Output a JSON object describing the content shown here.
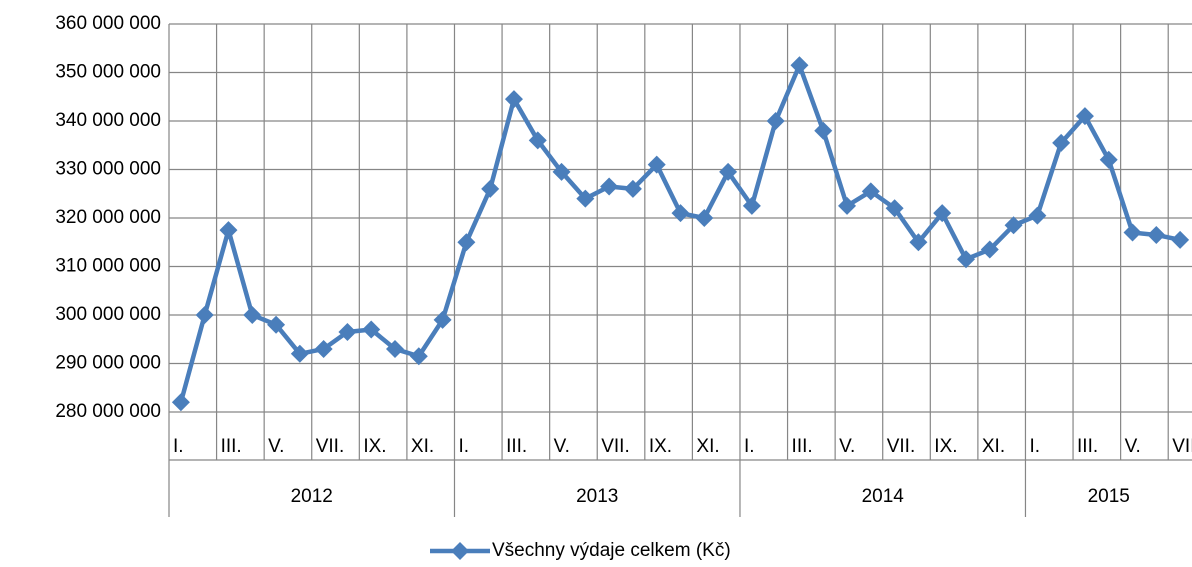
{
  "chart_data": {
    "type": "line",
    "categories": [
      "I.",
      null,
      "III.",
      null,
      "V.",
      null,
      "VII.",
      null,
      "IX.",
      null,
      "XI.",
      null,
      "I.",
      null,
      "III.",
      null,
      "V.",
      null,
      "VII.",
      null,
      "IX.",
      null,
      "XI.",
      null,
      "I.",
      null,
      "III.",
      null,
      "V.",
      null,
      "VII.",
      null,
      "IX.",
      null,
      "XI.",
      null,
      "I.",
      null,
      "III.",
      null,
      "V.",
      null,
      "VII"
    ],
    "groups": [
      {
        "label": "2012",
        "count": 12
      },
      {
        "label": "2013",
        "count": 12
      },
      {
        "label": "2014",
        "count": 12
      },
      {
        "label": "2015",
        "count": 7
      }
    ],
    "series": [
      {
        "name": "Všechny výdaje celkem (Kč)",
        "color": "#4a7ebb",
        "values": [
          282000000,
          300000000,
          317500000,
          300000000,
          298000000,
          292000000,
          293000000,
          296500000,
          297000000,
          293000000,
          291500000,
          299000000,
          315000000,
          326000000,
          344500000,
          336000000,
          329500000,
          324000000,
          326500000,
          326000000,
          331000000,
          321000000,
          320000000,
          329500000,
          322500000,
          340000000,
          351500000,
          338000000,
          322500000,
          325500000,
          322000000,
          315000000,
          321000000,
          311500000,
          313500000,
          318500000,
          320500000,
          335500000,
          341000000,
          332000000,
          317000000,
          316500000,
          315500000
        ]
      }
    ],
    "ylim": [
      280000000,
      360000000
    ],
    "yticks": [
      {
        "value": 280000000,
        "label": "280 000 000"
      },
      {
        "value": 290000000,
        "label": "290 000 000"
      },
      {
        "value": 300000000,
        "label": "300 000 000"
      },
      {
        "value": 310000000,
        "label": "310 000 000"
      },
      {
        "value": 320000000,
        "label": "320 000 000"
      },
      {
        "value": 330000000,
        "label": "330 000 000"
      },
      {
        "value": 340000000,
        "label": "340 000 000"
      },
      {
        "value": 350000000,
        "label": "350 000 000"
      },
      {
        "value": 360000000,
        "label": "360 000 000"
      }
    ],
    "grid": true,
    "legend": "bottom"
  }
}
